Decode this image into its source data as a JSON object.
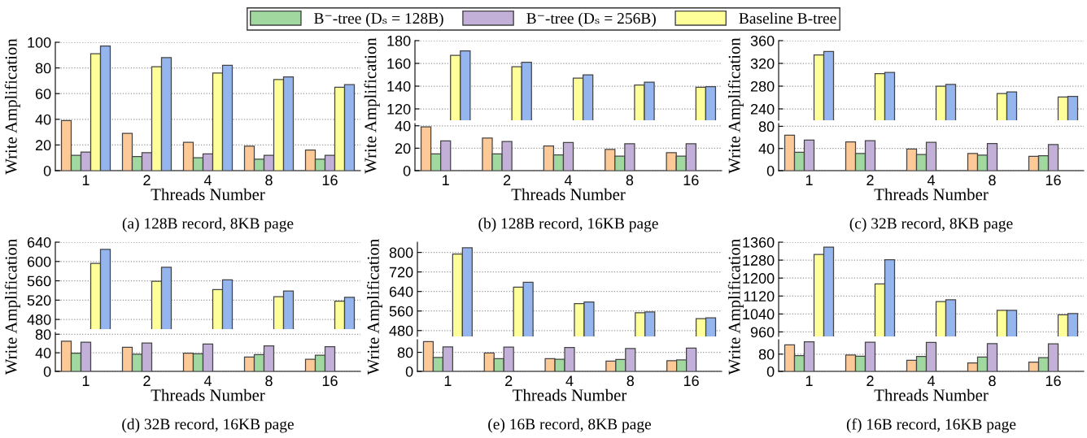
{
  "chart_data": [
    {
      "type": "bar",
      "categories": [
        "1",
        "2",
        "4",
        "8",
        "16"
      ],
      "xlabel": "Threads Number",
      "ylabel": "Write Amplification",
      "annotations": [
        "(a) 128B record, 8KB page"
      ],
      "ylim": [
        0,
        100
      ],
      "yticks": [
        0,
        20,
        40,
        60,
        80,
        100
      ],
      "grid": "y",
      "legend": "top",
      "series": [
        {
          "color": "#fdc997",
          "values": [
            39,
            29,
            22,
            19,
            16
          ]
        },
        {
          "name": "B⁻-tree (Dₛ = 128B)",
          "color": "#a0d8a0",
          "values": [
            12,
            11,
            10,
            9,
            9
          ]
        },
        {
          "name": "B⁻-tree (Dₛ = 256B)",
          "color": "#c2b0d8",
          "values": [
            14.5,
            14,
            13,
            12,
            12
          ]
        },
        {
          "name": "Baseline B-tree",
          "color": "#ffff99",
          "values": [
            91,
            81,
            76,
            71,
            65
          ]
        },
        {
          "color": "#94b5ee",
          "values": [
            97,
            88,
            82,
            73,
            67
          ]
        }
      ]
    },
    {
      "type": "bar",
      "categories": [
        "1",
        "2",
        "4",
        "8",
        "16"
      ],
      "ylim": [
        110,
        180
      ],
      "yticks": [
        120,
        140,
        160,
        180
      ],
      "grid": "y",
      "tick_labels": "y",
      "series": [
        {
          "color": "#ffff99",
          "values": [
            167,
            157,
            147,
            141,
            139
          ]
        },
        {
          "color": "#94b5ee",
          "values": [
            171,
            161,
            150,
            143.5,
            139.5
          ]
        }
      ]
    },
    {
      "type": "bar",
      "categories": [
        "1",
        "2",
        "4",
        "8",
        "16"
      ],
      "xlabel": "Threads Number",
      "ylabel": "Write Amplification",
      "annotations": [
        "(b) 128B record, 16KB page"
      ],
      "ylim": [
        0,
        42
      ],
      "yticks": [
        0,
        20,
        40
      ],
      "grid": "y",
      "series": [
        {
          "color": "#fdc997",
          "values": [
            39,
            29,
            22,
            19,
            16
          ]
        },
        {
          "color": "#a0d8a0",
          "values": [
            15,
            15,
            14,
            13,
            13
          ]
        },
        {
          "color": "#c2b0d8",
          "values": [
            26.5,
            26,
            25,
            24,
            24
          ]
        }
      ]
    },
    {
      "type": "bar",
      "categories": [
        "1",
        "2",
        "4",
        "8",
        "16"
      ],
      "ylim": [
        220,
        360
      ],
      "yticks": [
        240,
        280,
        320,
        360
      ],
      "grid": "y",
      "tick_labels": "y",
      "series": [
        {
          "color": "#ffff99",
          "values": [
            335,
            302,
            280,
            267,
            261
          ]
        },
        {
          "color": "#94b5ee",
          "values": [
            341,
            304,
            283,
            270,
            262
          ]
        }
      ]
    },
    {
      "type": "bar",
      "categories": [
        "1",
        "2",
        "4",
        "8",
        "16"
      ],
      "xlabel": "Threads Number",
      "ylabel": "Write Amplification",
      "annotations": [
        "(c) 32B record, 8KB page"
      ],
      "ylim": [
        0,
        85
      ],
      "yticks": [
        0,
        40,
        80
      ],
      "grid": "y",
      "series": [
        {
          "color": "#fdc997",
          "values": [
            64,
            52,
            39,
            31,
            26
          ]
        },
        {
          "color": "#a0d8a0",
          "values": [
            33,
            31,
            29,
            28,
            27
          ]
        },
        {
          "color": "#c2b0d8",
          "values": [
            55,
            54,
            51,
            49,
            47
          ]
        }
      ]
    },
    {
      "type": "bar",
      "categories": [
        "1",
        "2",
        "4",
        "8",
        "16"
      ],
      "ylim": [
        460,
        640
      ],
      "yticks": [
        480,
        520,
        560,
        600,
        640
      ],
      "grid": "y",
      "tick_labels": "y",
      "series": [
        {
          "color": "#ffff99",
          "values": [
            596,
            559,
            542,
            527,
            518
          ]
        },
        {
          "color": "#94b5ee",
          "values": [
            625,
            588,
            562,
            539,
            526
          ]
        }
      ]
    },
    {
      "type": "bar",
      "categories": [
        "1",
        "2",
        "4",
        "8",
        "16"
      ],
      "xlabel": "Threads Number",
      "ylabel": "Write Amplification",
      "annotations": [
        "(d) 32B record, 16KB page"
      ],
      "ylim": [
        0,
        84
      ],
      "yticks": [
        0,
        40,
        80
      ],
      "grid": "y",
      "series": [
        {
          "color": "#fdc997",
          "values": [
            65,
            52,
            39,
            31,
            26
          ]
        },
        {
          "color": "#a0d8a0",
          "values": [
            39,
            37,
            38,
            36,
            35
          ]
        },
        {
          "color": "#c2b0d8",
          "values": [
            63,
            61,
            59,
            55,
            53
          ]
        }
      ]
    },
    {
      "type": "bar",
      "categories": [
        "1",
        "2",
        "4",
        "8",
        "16"
      ],
      "ylim": [
        456,
        842
      ],
      "yticks": [
        480,
        560,
        640,
        720,
        800
      ],
      "grid": "y",
      "tick_labels": "y",
      "series": [
        {
          "color": "#ffff99",
          "values": [
            793,
            658,
            590,
            553,
            529
          ]
        },
        {
          "color": "#94b5ee",
          "values": [
            819,
            678,
            597,
            556,
            532
          ]
        }
      ]
    },
    {
      "type": "bar",
      "categories": [
        "1",
        "2",
        "4",
        "8",
        "16"
      ],
      "xlabel": "Threads Number",
      "ylabel": "Write Amplification",
      "annotations": [
        "(e) 16B record, 8KB page"
      ],
      "ylim": [
        0,
        133
      ],
      "yticks": [
        0,
        80
      ],
      "grid": "y",
      "series": [
        {
          "color": "#fdc997",
          "values": [
            125,
            77,
            53,
            43,
            45
          ]
        },
        {
          "color": "#a0d8a0",
          "values": [
            58,
            53,
            51,
            50,
            48
          ]
        },
        {
          "color": "#c2b0d8",
          "values": [
            103,
            102,
            100,
            96,
            98
          ]
        }
      ]
    },
    {
      "type": "bar",
      "categories": [
        "1",
        "2",
        "4",
        "8",
        "16"
      ],
      "ylim": [
        940,
        1360
      ],
      "yticks": [
        960,
        1040,
        1120,
        1200,
        1280,
        1360
      ],
      "grid": "y",
      "tick_labels": "y",
      "series": [
        {
          "color": "#ffff99",
          "values": [
            1305,
            1174,
            1095,
            1056,
            1036
          ]
        },
        {
          "color": "#94b5ee",
          "values": [
            1338,
            1282,
            1103,
            1056,
            1042
          ]
        }
      ]
    },
    {
      "type": "bar",
      "categories": [
        "1",
        "2",
        "4",
        "8",
        "16"
      ],
      "xlabel": "Threads Number",
      "ylabel": "Write Amplification",
      "annotations": [
        "(f) 16B record, 16KB page"
      ],
      "ylim": [
        0,
        147
      ],
      "yticks": [
        0,
        80
      ],
      "grid": "y",
      "series": [
        {
          "color": "#fdc997",
          "values": [
            123,
            76,
            51,
            39,
            43
          ]
        },
        {
          "color": "#a0d8a0",
          "values": [
            73,
            70,
            69,
            66,
            64
          ]
        },
        {
          "color": "#c2b0d8",
          "values": [
            137,
            135,
            134,
            129,
            128
          ]
        }
      ]
    }
  ]
}
